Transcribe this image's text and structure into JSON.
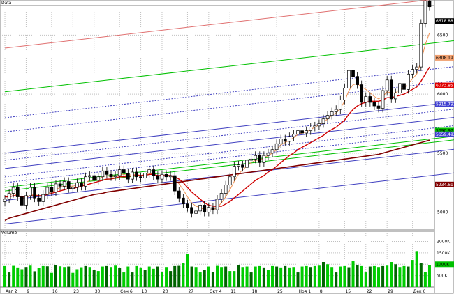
{
  "chart_data": [
    {
      "type": "candlestick",
      "title": "Data",
      "ylim": [
        4850,
        6750
      ],
      "y_ticks": [
        5000,
        5500,
        6000,
        6500
      ],
      "x_ticks": [
        "Авг 2",
        "9",
        "16",
        "23",
        "30",
        "Сен 6",
        "13",
        "20",
        "27",
        "Окт 4",
        "11",
        "18",
        "25",
        "Ноя 1",
        "8",
        "15",
        "22",
        "29",
        "Дек 6"
      ],
      "price_tags": [
        {
          "label": "6618.88",
          "value": 6618.88,
          "color": "#000000"
        },
        {
          "label": "6308.19",
          "value": 6308,
          "color": "#f0a070"
        },
        {
          "label": "6073.85",
          "value": 6073.85,
          "color": "#e00000"
        },
        {
          "label": "5915.7936",
          "value": 5915.79,
          "color": "#4040d0"
        },
        {
          "label": "5690.97",
          "value": 5690.97,
          "color": "#00c000"
        },
        {
          "label": "5659.4937",
          "value": 5659.49,
          "color": "#4040d0"
        },
        {
          "label": "5234.61",
          "value": 5234.61,
          "color": "#800000"
        }
      ],
      "series": [
        {
          "values": [
            5110,
            5160,
            5210,
            5130,
            5060,
            5140,
            5210,
            5120,
            5090,
            5150,
            5210,
            5170,
            5240,
            5220,
            5260,
            5200,
            5210,
            5250,
            5220,
            5300,
            5310,
            5270,
            5300,
            5350,
            5320,
            5300,
            5310,
            5360,
            5330,
            5280,
            5340,
            5300,
            5290,
            5330,
            5360,
            5310,
            5280,
            5320,
            5300,
            5310,
            5180,
            5120,
            5070,
            5040,
            4990,
            5010,
            5060,
            5000,
            5040,
            5020,
            5110,
            5160,
            5230,
            5300,
            5390,
            5400,
            5380,
            5440,
            5450,
            5480,
            5420,
            5480,
            5500,
            5530,
            5580,
            5620,
            5600,
            5640,
            5660,
            5690,
            5670,
            5690,
            5720,
            5730,
            5750,
            5790,
            5820,
            5850,
            5870,
            5950,
            6050,
            6200,
            6150,
            6080,
            5930,
            5980,
            5930,
            5900,
            5880,
            6030,
            6120,
            5960,
            6010,
            6090,
            6040,
            6170,
            6210,
            6230,
            6600,
            6790,
            6740
          ]
        },
        {
          "values": [
            5130,
            5140,
            5160,
            5140,
            5120,
            5120,
            5150,
            5150,
            5140,
            5140,
            5160,
            5170,
            5190,
            5210,
            5220,
            5220,
            5220,
            5230,
            5230,
            5250,
            5270,
            5270,
            5280,
            5300,
            5310,
            5300,
            5300,
            5320,
            5320,
            5310,
            5320,
            5320,
            5310,
            5320,
            5330,
            5320,
            5310,
            5310,
            5310,
            5310,
            5280,
            5240,
            5190,
            5130,
            5080,
            5050,
            5040,
            5020,
            5020,
            5020,
            5040,
            5080,
            5130,
            5190,
            5260,
            5320,
            5360,
            5390,
            5420,
            5440,
            5440,
            5460,
            5480,
            5500,
            5530,
            5570,
            5590,
            5610,
            5630,
            5660,
            5670,
            5680,
            5700,
            5720,
            5740,
            5760,
            5790,
            5820,
            5840,
            5880,
            5940,
            6030,
            6080,
            6090,
            6060,
            6040,
            6010,
            5980,
            5960,
            5980,
            6020,
            6010,
            6010,
            6040,
            6050,
            6090,
            6130,
            6170,
            6280,
            6420,
            6520
          ]
        },
        {
          "values": [
            5130,
            5130,
            5140,
            5140,
            5130,
            5130,
            5140,
            5140,
            5140,
            5140,
            5150,
            5160,
            5170,
            5180,
            5190,
            5200,
            5200,
            5210,
            5220,
            5230,
            5240,
            5250,
            5260,
            5270,
            5280,
            5280,
            5290,
            5300,
            5300,
            5300,
            5310,
            5310,
            5310,
            5310,
            5320,
            5320,
            5310,
            5310,
            5310,
            5310,
            5300,
            5280,
            5250,
            5210,
            5170,
            5140,
            5110,
            5080,
            5060,
            5050,
            5050,
            5050,
            5070,
            5090,
            5120,
            5150,
            5180,
            5210,
            5240,
            5270,
            5290,
            5310,
            5340,
            5360,
            5390,
            5420,
            5450,
            5480,
            5500,
            5530,
            5550,
            5570,
            5590,
            5610,
            5630,
            5650,
            5680,
            5700,
            5720,
            5750,
            5780,
            5830,
            5870,
            5900,
            5920,
            5930,
            5940,
            5940,
            5940,
            5950,
            5970,
            5970,
            5980,
            5990,
            6000,
            6020,
            6040,
            6060,
            6110,
            6170,
            6230
          ]
        },
        {
          "values": [
            4930,
            4950,
            4960,
            4970,
            4980,
            4990,
            5000,
            5010,
            5020,
            5030,
            5040,
            5050,
            5060,
            5070,
            5080,
            5090,
            5100,
            5110,
            5120,
            5130,
            5140,
            5150,
            5155,
            5160,
            5170,
            5175,
            5180,
            5185,
            5190,
            5195,
            5200,
            5205,
            5210,
            5215,
            5220,
            5225,
            5230,
            5235,
            5240,
            5245,
            5250,
            5255,
            5260,
            5265,
            5270,
            5275,
            5280,
            5285,
            5290,
            5295,
            5300,
            5305,
            5310,
            5315,
            5320,
            5325,
            5330,
            5335,
            5340,
            5345,
            5350,
            5355,
            5360,
            5365,
            5370,
            5375,
            5380,
            5385,
            5390,
            5395,
            5400,
            5405,
            5410,
            5415,
            5420,
            5425,
            5430,
            5435,
            5440,
            5445,
            5450,
            5455,
            5460,
            5465,
            5470,
            5475,
            5480,
            5485,
            5490,
            5500,
            5510,
            5520,
            5530,
            5540,
            5550,
            5560,
            5570,
            5580,
            5590,
            5600,
            5610
          ]
        }
      ],
      "channel_lines": [
        {
          "color": "#e07070",
          "dash": false,
          "from": [
            0,
            6390
          ],
          "to": [
            110,
            6840
          ]
        },
        {
          "color": "#00c000",
          "dash": false,
          "from": [
            0,
            6020
          ],
          "to": [
            110,
            6470
          ]
        },
        {
          "color": "#00c000",
          "dash": false,
          "from": [
            0,
            5210
          ],
          "to": [
            110,
            5660
          ]
        },
        {
          "color": "#00c000",
          "dash": false,
          "from": [
            0,
            5180
          ],
          "to": [
            110,
            5630
          ]
        },
        {
          "color": "#4040c0",
          "dash": false,
          "from": [
            0,
            5500
          ],
          "to": [
            110,
            5950
          ]
        },
        {
          "color": "#4040c0",
          "dash": false,
          "from": [
            0,
            5370
          ],
          "to": [
            110,
            5820
          ]
        },
        {
          "color": "#4040c0",
          "dash": false,
          "from": [
            0,
            5100
          ],
          "to": [
            110,
            5550
          ]
        },
        {
          "color": "#4040c0",
          "dash": false,
          "from": [
            0,
            4900
          ],
          "to": [
            110,
            5350
          ]
        },
        {
          "color": "#4040c0",
          "dash": true,
          "from": [
            0,
            5800
          ],
          "to": [
            110,
            6250
          ]
        },
        {
          "color": "#4040c0",
          "dash": true,
          "from": [
            0,
            5680
          ],
          "to": [
            110,
            6130
          ]
        },
        {
          "color": "#4040c0",
          "dash": true,
          "from": [
            0,
            5440
          ],
          "to": [
            110,
            5890
          ]
        },
        {
          "color": "#4040c0",
          "dash": true,
          "from": [
            0,
            5300
          ],
          "to": [
            110,
            5750
          ]
        },
        {
          "color": "#4040c0",
          "dash": true,
          "from": [
            0,
            5250
          ],
          "to": [
            110,
            5700
          ]
        }
      ]
    },
    {
      "type": "bar",
      "title": "Volume",
      "ylim": [
        0,
        2200
      ],
      "y_ticks": [
        500,
        1000,
        1500,
        2000
      ],
      "y_tick_labels": [
        "500K",
        "1000K",
        "1500K",
        "2000K"
      ],
      "price_tags": [
        {
          "label": "1000K",
          "value": 1000,
          "color": "#00c000"
        }
      ],
      "values": [
        920,
        640,
        930,
        860,
        780,
        880,
        940,
        690,
        850,
        920,
        910,
        620,
        960,
        910,
        880,
        900,
        620,
        780,
        870,
        920,
        880,
        760,
        700,
        900,
        920,
        880,
        940,
        850,
        640,
        900,
        640,
        920,
        860,
        750,
        900,
        800,
        900,
        660,
        880,
        700,
        920,
        930,
        1050,
        1450,
        900,
        880,
        640,
        750,
        900,
        660,
        930,
        880,
        900,
        700,
        700,
        960,
        880,
        900,
        640,
        900,
        920,
        860,
        750,
        920,
        900,
        860,
        920,
        860,
        880,
        640,
        900,
        920,
        880,
        920,
        940,
        1100,
        1000,
        880,
        640,
        900,
        920,
        870,
        1130,
        950,
        920,
        640,
        900,
        920,
        880,
        920,
        940,
        1100,
        1000,
        880,
        920,
        900,
        1190,
        1580,
        1050,
        650,
        950
      ],
      "colors": [
        "g",
        "d",
        "g",
        "g",
        "g",
        "d",
        "g",
        "d",
        "g",
        "g",
        "d",
        "g",
        "d",
        "g",
        "g",
        "d",
        "g",
        "g",
        "g",
        "d",
        "g",
        "d",
        "g",
        "g",
        "d",
        "g",
        "g",
        "d",
        "g",
        "g",
        "d",
        "g",
        "g",
        "d",
        "g",
        "g",
        "d",
        "g",
        "g",
        "d",
        "d",
        "d",
        "g",
        "g",
        "d",
        "g",
        "g",
        "d",
        "g",
        "d",
        "g",
        "g",
        "d",
        "g",
        "g",
        "d",
        "g",
        "g",
        "d",
        "g",
        "g",
        "d",
        "g",
        "g",
        "d",
        "g",
        "d",
        "g",
        "g",
        "d",
        "g",
        "g",
        "d",
        "g",
        "g",
        "d",
        "g",
        "g",
        "d",
        "g",
        "g",
        "d",
        "g",
        "d",
        "g",
        "g",
        "d",
        "g",
        "g",
        "d",
        "g",
        "g",
        "d",
        "g",
        "g",
        "d",
        "g",
        "g",
        "d",
        "g",
        "g"
      ]
    }
  ]
}
